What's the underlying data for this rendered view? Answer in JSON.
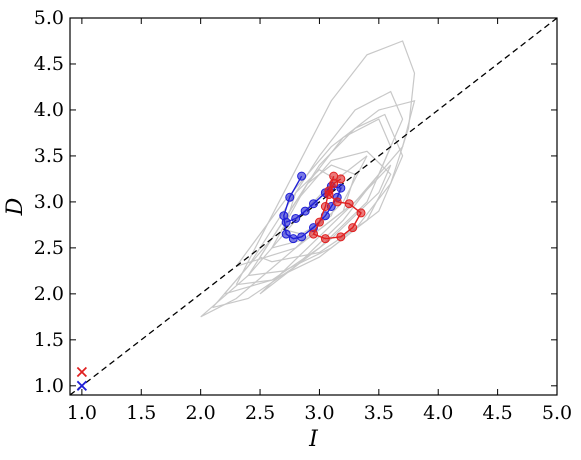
{
  "chart_data": {
    "type": "line",
    "xlabel": "I",
    "ylabel": "D",
    "xlim": [
      0.9,
      5.0
    ],
    "ylim": [
      0.9,
      5.0
    ],
    "x_ticks": [
      "1.0",
      "1.5",
      "2.0",
      "2.5",
      "3.0",
      "3.5",
      "4.0",
      "4.5",
      "5.0"
    ],
    "y_ticks": [
      "1.0",
      "1.5",
      "2.0",
      "2.5",
      "3.0",
      "3.5",
      "4.0",
      "4.5",
      "5.0"
    ],
    "grid": false,
    "colors": {
      "background_trajectories": "#c8c8c8",
      "blue": "#1f1fd6",
      "red": "#e02020",
      "diagonal": "#000000"
    },
    "series": [
      {
        "kind": "background",
        "lines": [
          [
            [
              2.3,
              2.1
            ],
            [
              2.5,
              2.6
            ],
            [
              2.7,
              3.1
            ],
            [
              2.9,
              3.6
            ],
            [
              3.1,
              4.1
            ],
            [
              3.4,
              4.6
            ],
            [
              3.7,
              4.75
            ],
            [
              3.8,
              4.4
            ],
            [
              3.75,
              3.8
            ],
            [
              3.6,
              3.2
            ],
            [
              3.3,
              2.7
            ],
            [
              3.0,
              2.4
            ],
            [
              2.6,
              2.15
            ],
            [
              2.3,
              2.1
            ]
          ],
          [
            [
              2.1,
              1.85
            ],
            [
              2.4,
              2.3
            ],
            [
              2.7,
              2.9
            ],
            [
              3.0,
              3.5
            ],
            [
              3.3,
              4.0
            ],
            [
              3.6,
              4.2
            ],
            [
              3.7,
              3.9
            ],
            [
              3.5,
              3.3
            ],
            [
              3.2,
              2.8
            ],
            [
              2.8,
              2.3
            ],
            [
              2.4,
              1.95
            ],
            [
              2.1,
              1.85
            ]
          ],
          [
            [
              2.2,
              2.0
            ],
            [
              2.6,
              2.6
            ],
            [
              2.9,
              3.2
            ],
            [
              3.2,
              3.7
            ],
            [
              3.5,
              3.9
            ],
            [
              3.6,
              3.6
            ],
            [
              3.4,
              3.0
            ],
            [
              3.0,
              2.5
            ],
            [
              2.6,
              2.15
            ],
            [
              2.2,
              2.0
            ]
          ],
          [
            [
              2.4,
              2.2
            ],
            [
              2.7,
              2.8
            ],
            [
              3.0,
              3.4
            ],
            [
              3.3,
              3.8
            ],
            [
              3.55,
              3.95
            ],
            [
              3.7,
              3.5
            ],
            [
              3.5,
              2.9
            ],
            [
              3.1,
              2.5
            ],
            [
              2.7,
              2.25
            ],
            [
              2.4,
              2.2
            ]
          ],
          [
            [
              2.5,
              2.4
            ],
            [
              2.8,
              3.0
            ],
            [
              3.1,
              3.45
            ],
            [
              3.4,
              3.55
            ],
            [
              3.6,
              3.3
            ],
            [
              3.4,
              2.8
            ],
            [
              3.0,
              2.45
            ],
            [
              2.6,
              2.35
            ],
            [
              2.5,
              2.4
            ]
          ],
          [
            [
              2.6,
              2.5
            ],
            [
              2.9,
              3.2
            ],
            [
              3.1,
              3.4
            ],
            [
              3.3,
              3.3
            ],
            [
              3.2,
              2.9
            ],
            [
              2.9,
              2.6
            ],
            [
              2.6,
              2.5
            ]
          ],
          [
            [
              2.0,
              1.75
            ],
            [
              2.4,
              2.2
            ],
            [
              2.8,
              2.8
            ],
            [
              3.1,
              3.2
            ],
            [
              3.4,
              3.5
            ],
            [
              3.2,
              3.0
            ],
            [
              2.8,
              2.5
            ],
            [
              2.3,
              1.95
            ],
            [
              2.0,
              1.75
            ]
          ],
          [
            [
              2.7,
              2.7
            ],
            [
              2.8,
              3.1
            ],
            [
              3.0,
              3.35
            ],
            [
              3.2,
              3.2
            ],
            [
              3.1,
              2.85
            ],
            [
              2.85,
              2.65
            ],
            [
              2.7,
              2.7
            ]
          ],
          [
            [
              2.3,
              2.3
            ],
            [
              2.7,
              3.0
            ],
            [
              3.1,
              3.6
            ],
            [
              3.5,
              4.0
            ],
            [
              3.8,
              4.1
            ],
            [
              3.7,
              3.6
            ],
            [
              3.3,
              3.0
            ],
            [
              2.8,
              2.5
            ],
            [
              2.3,
              2.3
            ]
          ],
          [
            [
              2.5,
              2.0
            ],
            [
              2.9,
              2.5
            ],
            [
              3.3,
              3.0
            ],
            [
              3.6,
              3.4
            ],
            [
              3.5,
              3.1
            ],
            [
              3.1,
              2.6
            ],
            [
              2.7,
              2.2
            ],
            [
              2.5,
              2.0
            ]
          ]
        ]
      },
      {
        "kind": "blue",
        "points": [
          [
            2.85,
            3.28
          ],
          [
            2.75,
            3.05
          ],
          [
            2.7,
            2.85
          ],
          [
            2.72,
            2.65
          ],
          [
            2.78,
            2.6
          ],
          [
            2.85,
            2.62
          ],
          [
            2.95,
            2.72
          ],
          [
            3.05,
            2.85
          ],
          [
            3.1,
            2.95
          ],
          [
            3.15,
            3.05
          ],
          [
            3.18,
            3.15
          ],
          [
            3.1,
            3.17
          ],
          [
            3.05,
            3.1
          ],
          [
            2.95,
            2.98
          ],
          [
            2.88,
            2.9
          ],
          [
            2.8,
            2.82
          ],
          [
            2.72,
            2.78
          ]
        ]
      },
      {
        "kind": "red",
        "points": [
          [
            3.12,
            3.28
          ],
          [
            3.08,
            3.12
          ],
          [
            3.05,
            2.95
          ],
          [
            3.0,
            2.78
          ],
          [
            2.95,
            2.65
          ],
          [
            3.05,
            2.6
          ],
          [
            3.18,
            2.62
          ],
          [
            3.28,
            2.72
          ],
          [
            3.35,
            2.88
          ],
          [
            3.25,
            2.98
          ],
          [
            3.15,
            3.0
          ],
          [
            3.08,
            3.08
          ],
          [
            3.12,
            3.2
          ],
          [
            3.18,
            3.25
          ]
        ]
      }
    ],
    "markers": [
      {
        "x": 1.0,
        "y": 1.0,
        "symbol": "x",
        "color_key": "blue"
      },
      {
        "x": 1.0,
        "y": 1.15,
        "symbol": "x",
        "color_key": "red"
      }
    ]
  }
}
